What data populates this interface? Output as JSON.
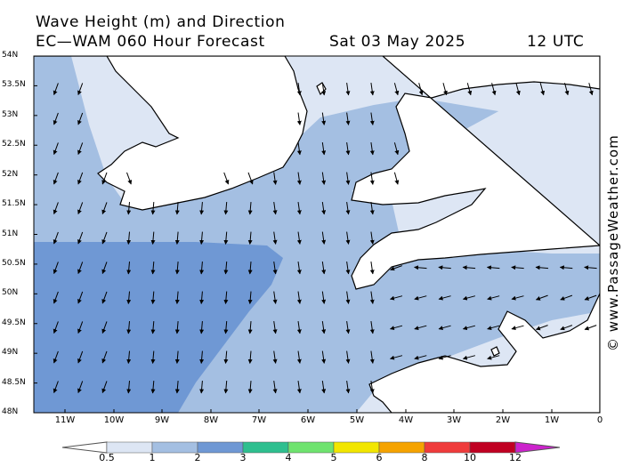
{
  "header": {
    "title": "Wave Height (m) and Direction",
    "model_line": "EC—WAM 060 Hour Forecast",
    "valid_date": "Sat 03 May 2025",
    "valid_time": "12 UTC"
  },
  "map": {
    "lat_labels": [
      "54N",
      "53.5N",
      "53N",
      "52.5N",
      "52N",
      "51.5N",
      "51N",
      "50.5N",
      "50N",
      "49.5N",
      "49N",
      "48.5N",
      "48N"
    ],
    "lon_labels": [
      "11W",
      "10W",
      "9W",
      "8W",
      "7W",
      "6W",
      "5W",
      "4W",
      "3W",
      "2W",
      "1W",
      "0"
    ],
    "extent": {
      "lon": [
        -11.6,
        0
      ],
      "lat": [
        48,
        54
      ]
    },
    "prevailing_wave_direction": "toward south / south-southwest",
    "land_color": "#ffffff",
    "coastline_color": "#000000"
  },
  "legend": {
    "labels": [
      "0.5",
      "1",
      "2",
      "3",
      "4",
      "5",
      "6",
      "8",
      "10",
      "12"
    ],
    "bands": [
      {
        "from": "<0.5",
        "color": "#ffffff"
      },
      {
        "from": "0.5",
        "color": "#dde6f4"
      },
      {
        "from": "1",
        "color": "#a4bfe2"
      },
      {
        "from": "2",
        "color": "#6f98d4"
      },
      {
        "from": "3",
        "color": "#2ebf8f"
      },
      {
        "from": "4",
        "color": "#6fe36f"
      },
      {
        "from": "5",
        "color": "#f2e600"
      },
      {
        "from": "6",
        "color": "#f5a300"
      },
      {
        "from": "8",
        "color": "#ef3b3b"
      },
      {
        "from": "10",
        "color": "#c00022"
      },
      {
        "from": "12",
        "color": "#cc22cc"
      }
    ]
  },
  "credit": "© www.PassageWeather.com"
}
